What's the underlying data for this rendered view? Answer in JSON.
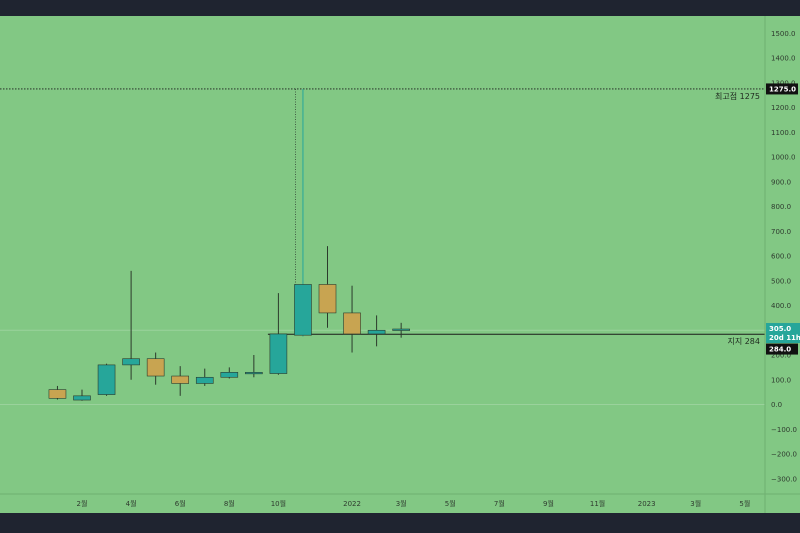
{
  "colors": {
    "background": "#82c884",
    "frame": "#1f2430",
    "up": "#26a69a",
    "down": "#c8a451",
    "wick": "#2b3a2b",
    "line": "#1a1a1a",
    "badge_dark": "#111111",
    "badge_teal": "#26a69a"
  },
  "chart_data": {
    "type": "candlestick",
    "y_axis": {
      "range": [
        -340,
        1560
      ],
      "ticks": [
        1500,
        1400,
        1300,
        1200,
        1100,
        1000,
        900,
        800,
        700,
        600,
        500,
        400,
        300,
        200,
        100,
        0,
        -100,
        -200,
        -300
      ],
      "tick_labels": [
        "1500.0",
        "1400.0",
        "1300.0",
        "1200.0",
        "1100.0",
        "1000.0",
        "900.0",
        "800.0",
        "700.0",
        "600.0",
        "500.0",
        "400.0",
        "300.0",
        "200.0",
        "100.0",
        "0.0",
        "−100.0",
        "−200.0",
        "−300.0"
      ]
    },
    "x_axis": {
      "labels": [
        {
          "label": "2월",
          "t": 0
        },
        {
          "label": "4월",
          "t": 2
        },
        {
          "label": "6월",
          "t": 4
        },
        {
          "label": "8월",
          "t": 6
        },
        {
          "label": "10월",
          "t": 8
        },
        {
          "label": "2022",
          "t": 11
        },
        {
          "label": "3월",
          "t": 13
        },
        {
          "label": "5월",
          "t": 15
        },
        {
          "label": "7월",
          "t": 17
        },
        {
          "label": "9월",
          "t": 19
        },
        {
          "label": "11월",
          "t": 21
        },
        {
          "label": "2023",
          "t": 23
        },
        {
          "label": "3월",
          "t": 25
        },
        {
          "label": "5월",
          "t": 27
        }
      ]
    },
    "candles": [
      {
        "t": -1,
        "o": 60,
        "h": 75,
        "l": 20,
        "c": 25
      },
      {
        "t": 0,
        "o": 18,
        "h": 60,
        "l": 15,
        "c": 35
      },
      {
        "t": 1,
        "o": 40,
        "h": 165,
        "l": 35,
        "c": 160
      },
      {
        "t": 2,
        "o": 160,
        "h": 540,
        "l": 100,
        "c": 185
      },
      {
        "t": 3,
        "o": 185,
        "h": 210,
        "l": 80,
        "c": 115
      },
      {
        "t": 4,
        "o": 115,
        "h": 155,
        "l": 35,
        "c": 85
      },
      {
        "t": 5,
        "o": 85,
        "h": 145,
        "l": 75,
        "c": 110
      },
      {
        "t": 6,
        "o": 110,
        "h": 150,
        "l": 105,
        "c": 130
      },
      {
        "t": 7,
        "o": 130,
        "h": 200,
        "l": 110,
        "c": 130
      },
      {
        "t": 8,
        "o": 125,
        "h": 450,
        "l": 120,
        "c": 285
      },
      {
        "t": 9,
        "o": 280,
        "h": 1275,
        "l": 275,
        "c": 485
      },
      {
        "t": 10,
        "o": 485,
        "h": 640,
        "l": 310,
        "c": 370
      },
      {
        "t": 11,
        "o": 370,
        "h": 480,
        "l": 210,
        "c": 285
      },
      {
        "t": 12,
        "o": 285,
        "h": 360,
        "l": 235,
        "c": 300
      },
      {
        "t": 13,
        "o": 300,
        "h": 330,
        "l": 270,
        "c": 305
      }
    ],
    "levels": [
      {
        "name": "최고점 1275",
        "value": 1275,
        "badge": "1275.0",
        "style": "dotted",
        "from_t": 9
      },
      {
        "name": "지지 284",
        "value": 284,
        "badge": "284.0",
        "style": "solid",
        "from_t": 8
      }
    ],
    "current_price": {
      "value": 305,
      "label": "305.0",
      "countdown": "20d 11h"
    },
    "grid": true
  }
}
